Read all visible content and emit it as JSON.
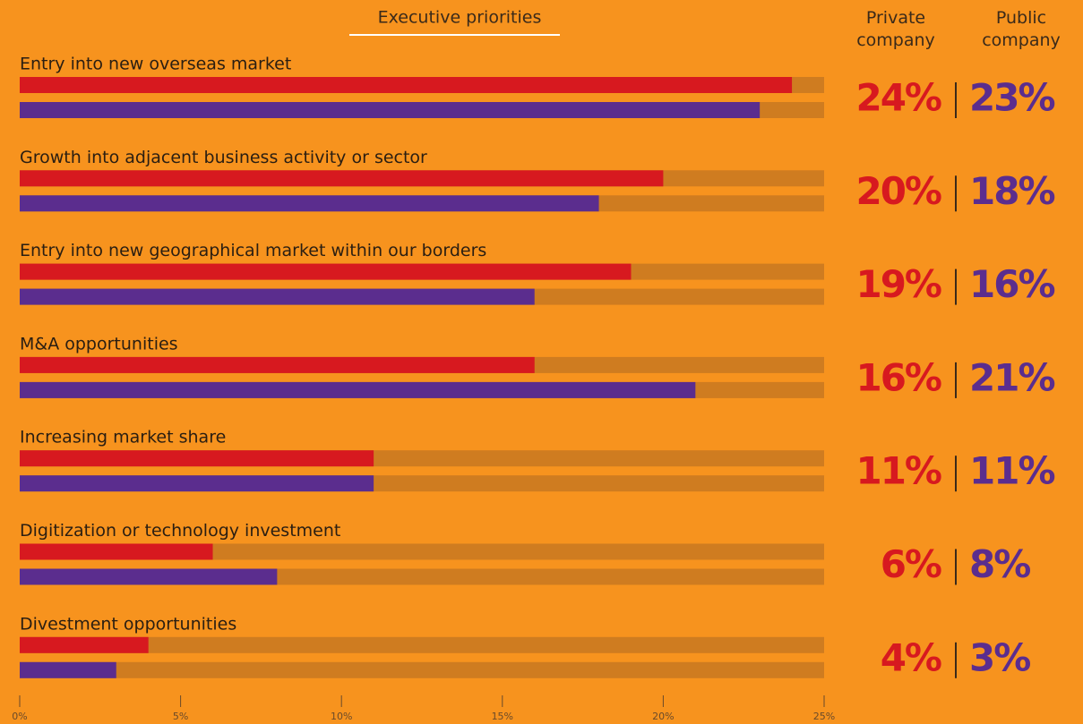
{
  "chart_data": {
    "type": "bar",
    "orientation": "horizontal",
    "title": "Executive priorities",
    "categories": [
      "Entry into new overseas market",
      "Growth into adjacent business activity or sector",
      "Entry into new geographical market within our borders",
      "M&A opportunities",
      "Increasing market share",
      "Digitization or technology investment",
      "Divestment opportunities"
    ],
    "series": [
      {
        "name": "Private company",
        "color": "#d7191f",
        "values": [
          24,
          20,
          19,
          16,
          11,
          6,
          4
        ],
        "value_labels": [
          "24%",
          "20%",
          "19%",
          "16%",
          "11%",
          "6%",
          "4%"
        ]
      },
      {
        "name": "Public company",
        "color": "#5b2d8e",
        "values": [
          23,
          18,
          16,
          21,
          11,
          8,
          3
        ],
        "value_labels": [
          "23%",
          "18%",
          "16%",
          "21%",
          "11%",
          "8%",
          "3%"
        ]
      }
    ],
    "xlim": [
      0,
      25
    ],
    "xticks": [
      {
        "value": 0,
        "label": "0%"
      },
      {
        "value": 5,
        "label": "5%"
      },
      {
        "value": 10,
        "label": "10%"
      },
      {
        "value": 15,
        "label": "15%"
      },
      {
        "value": 20,
        "label": "20%"
      },
      {
        "value": 25,
        "label": "25%"
      }
    ],
    "track_color": "#cf7c20"
  }
}
